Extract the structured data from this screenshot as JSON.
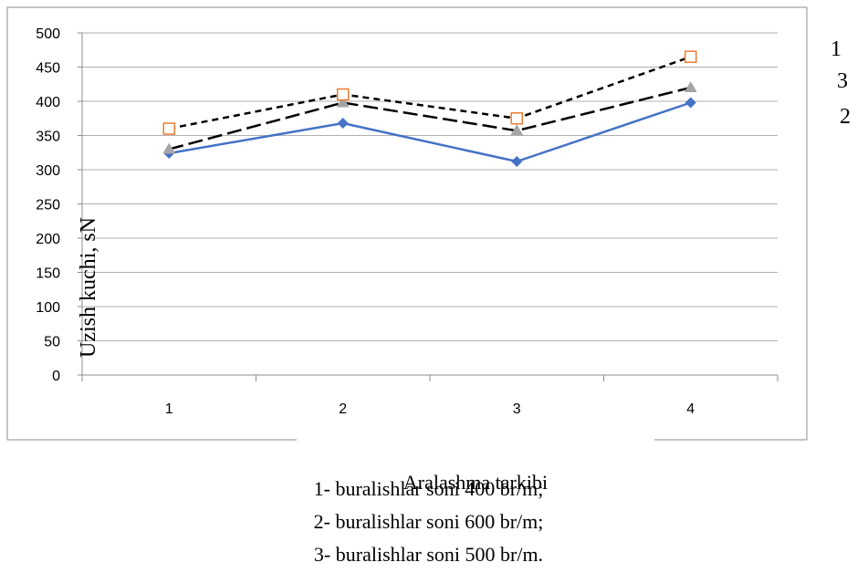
{
  "chart_data": {
    "type": "line",
    "categories": [
      "1",
      "2",
      "3",
      "4"
    ],
    "ylabel": "Uzish kuchi, sN",
    "xlabel": "Aralashma tarkibi",
    "ylim": [
      0,
      500
    ],
    "yticks": [
      0,
      50,
      100,
      150,
      200,
      250,
      300,
      350,
      400,
      450,
      500
    ],
    "grid": true,
    "series": [
      {
        "name": "1",
        "values": [
          360,
          410,
          375,
          465
        ],
        "color": "#000000",
        "marker_color": "#ED7D31",
        "marker": "square-open",
        "line": "dotted"
      },
      {
        "name": "3",
        "values": [
          330,
          398,
          357,
          420
        ],
        "color": "#000000",
        "marker_color": "#A5A5A5",
        "marker": "triangle",
        "line": "dashed"
      },
      {
        "name": "2",
        "values": [
          324,
          368,
          312,
          398
        ],
        "color": "#4472C4",
        "marker_color": "#4472C4",
        "marker": "diamond",
        "line": "solid"
      }
    ],
    "legend_placement": "right"
  },
  "notes": [
    "1- buralishlar soni 400 br/m;",
    "2- buralishlar soni 600 br/m;",
    "3- buralishlar soni 500 br/m."
  ]
}
